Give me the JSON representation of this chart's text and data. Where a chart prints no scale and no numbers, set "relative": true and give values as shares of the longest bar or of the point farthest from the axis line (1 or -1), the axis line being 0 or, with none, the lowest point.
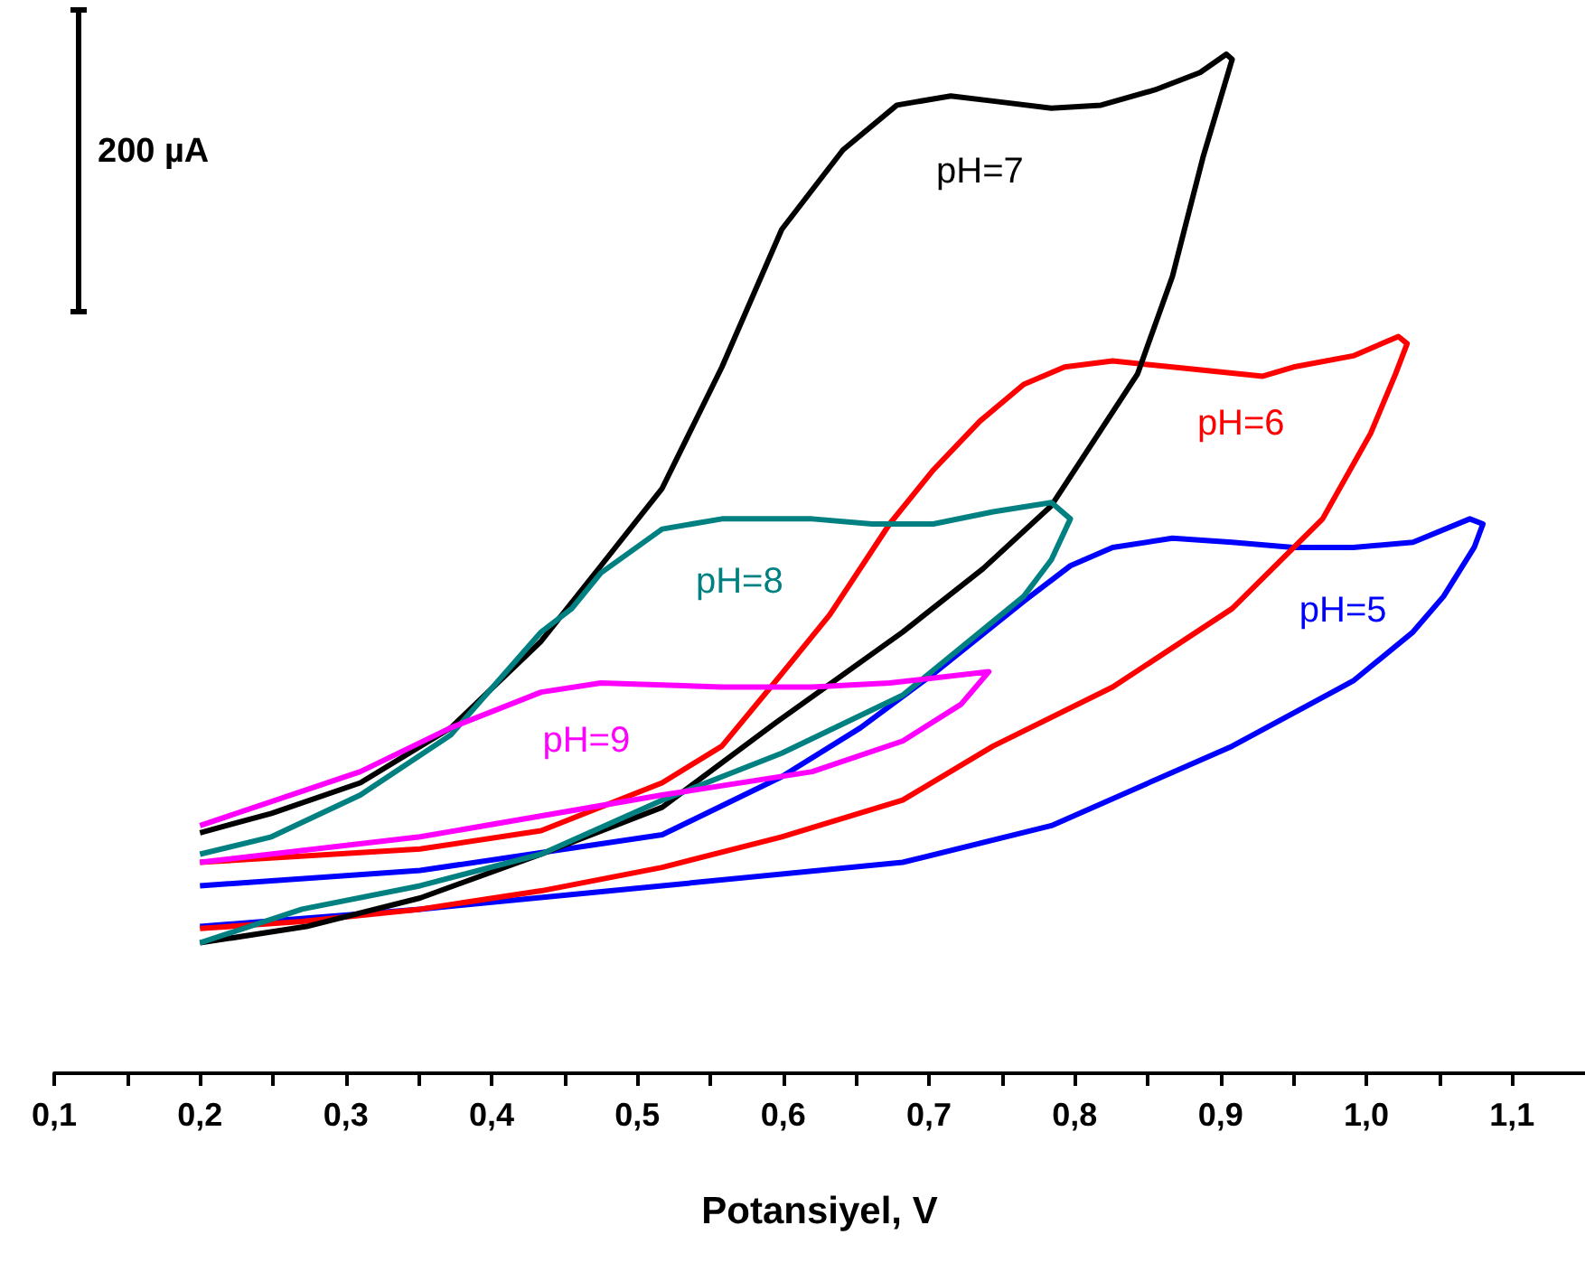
{
  "chart_data": {
    "type": "line",
    "relative": true,
    "xlabel": "Potansiyel, V",
    "annotations": [
      "200 µA"
    ],
    "xlim": [
      0.1,
      1.15
    ],
    "xticks": [
      {
        "value": 0.1,
        "label": "0,1"
      },
      {
        "value": 0.15,
        "label": null
      },
      {
        "value": 0.2,
        "label": "0,2"
      },
      {
        "value": 0.25,
        "label": null
      },
      {
        "value": 0.3,
        "label": "0,3"
      },
      {
        "value": 0.35,
        "label": null
      },
      {
        "value": 0.4,
        "label": "0,4"
      },
      {
        "value": 0.45,
        "label": null
      },
      {
        "value": 0.5,
        "label": "0,5"
      },
      {
        "value": 0.55,
        "label": null
      },
      {
        "value": 0.6,
        "label": "0,6"
      },
      {
        "value": 0.65,
        "label": null
      },
      {
        "value": 0.7,
        "label": "0,7"
      },
      {
        "value": 0.75,
        "label": null
      },
      {
        "value": 0.8,
        "label": "0,8"
      },
      {
        "value": 0.85,
        "label": null
      },
      {
        "value": 0.9,
        "label": "0,9"
      },
      {
        "value": 0.95,
        "label": null
      },
      {
        "value": 1.0,
        "label": "1,0"
      },
      {
        "value": 1.05,
        "label": null
      },
      {
        "value": 1.1,
        "label": "1,1"
      }
    ],
    "series": [
      {
        "name": "pH=5",
        "color": "#0000ff",
        "x": [
          0.2,
          0.351,
          0.517,
          0.682,
          0.784,
          0.908,
          0.991,
          1.032,
          1.053,
          1.074,
          1.08,
          1.071,
          1.032,
          0.991,
          0.95,
          0.908,
          0.867,
          0.826,
          0.797,
          0.765,
          0.703,
          0.653,
          0.599,
          0.517,
          0.351,
          0.2
        ],
        "values": [
          0.144,
          0.161,
          0.184,
          0.207,
          0.243,
          0.321,
          0.385,
          0.433,
          0.468,
          0.516,
          0.539,
          0.544,
          0.521,
          0.516,
          0.516,
          0.521,
          0.525,
          0.516,
          0.498,
          0.463,
          0.392,
          0.339,
          0.291,
          0.234,
          0.199,
          0.184
        ]
      },
      {
        "name": "pH=6",
        "color": "#ff0000",
        "x": [
          0.2,
          0.27,
          0.351,
          0.434,
          0.517,
          0.599,
          0.682,
          0.744,
          0.826,
          0.908,
          0.97,
          1.003,
          1.02,
          1.028,
          1.022,
          0.991,
          0.95,
          0.929,
          0.867,
          0.826,
          0.793,
          0.765,
          0.735,
          0.703,
          0.673,
          0.632,
          0.599,
          0.558,
          0.517,
          0.434,
          0.351,
          0.2
        ],
        "values": [
          0.142,
          0.149,
          0.161,
          0.179,
          0.202,
          0.232,
          0.268,
          0.321,
          0.379,
          0.456,
          0.544,
          0.628,
          0.686,
          0.716,
          0.723,
          0.704,
          0.693,
          0.684,
          0.693,
          0.699,
          0.693,
          0.676,
          0.64,
          0.592,
          0.539,
          0.45,
          0.392,
          0.321,
          0.285,
          0.238,
          0.22,
          0.207
        ]
      },
      {
        "name": "pH=7",
        "color": "#000000",
        "x": [
          0.2,
          0.273,
          0.351,
          0.434,
          0.517,
          0.595,
          0.682,
          0.737,
          0.784,
          0.843,
          0.867,
          0.888,
          0.908,
          0.904,
          0.886,
          0.855,
          0.818,
          0.784,
          0.744,
          0.715,
          0.678,
          0.641,
          0.599,
          0.558,
          0.517,
          0.475,
          0.434,
          0.372,
          0.31,
          0.249,
          0.2
        ],
        "values": [
          0.128,
          0.144,
          0.172,
          0.215,
          0.261,
          0.344,
          0.433,
          0.495,
          0.557,
          0.686,
          0.782,
          0.899,
          0.995,
          1.0,
          0.982,
          0.965,
          0.95,
          0.947,
          0.954,
          0.959,
          0.95,
          0.906,
          0.828,
          0.693,
          0.574,
          0.498,
          0.424,
          0.339,
          0.285,
          0.255,
          0.236
        ]
      },
      {
        "name": "pH=8",
        "color": "#008080",
        "x": [
          0.2,
          0.27,
          0.351,
          0.434,
          0.517,
          0.599,
          0.682,
          0.765,
          0.784,
          0.797,
          0.784,
          0.744,
          0.703,
          0.661,
          0.62,
          0.599,
          0.558,
          0.517,
          0.475,
          0.455,
          0.434,
          0.372,
          0.31,
          0.249,
          0.2
        ],
        "values": [
          0.128,
          0.161,
          0.184,
          0.215,
          0.268,
          0.314,
          0.371,
          0.468,
          0.504,
          0.544,
          0.56,
          0.551,
          0.539,
          0.539,
          0.544,
          0.544,
          0.544,
          0.534,
          0.491,
          0.456,
          0.433,
          0.332,
          0.273,
          0.232,
          0.215
        ]
      },
      {
        "name": "pH=9",
        "color": "#ff00ff",
        "x": [
          0.2,
          0.351,
          0.517,
          0.62,
          0.682,
          0.722,
          0.741,
          0.673,
          0.62,
          0.558,
          0.475,
          0.434,
          0.372,
          0.31,
          0.2
        ],
        "values": [
          0.207,
          0.232,
          0.273,
          0.296,
          0.326,
          0.362,
          0.394,
          0.383,
          0.379,
          0.379,
          0.383,
          0.374,
          0.339,
          0.296,
          0.243
        ]
      }
    ]
  }
}
